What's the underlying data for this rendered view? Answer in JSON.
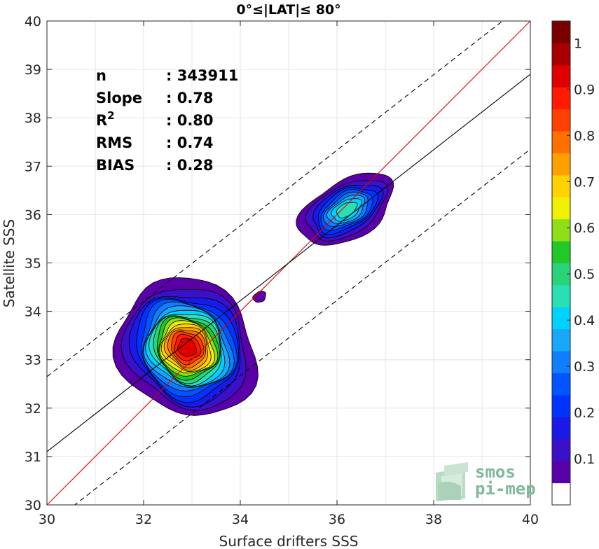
{
  "chart_data": {
    "type": "heatmap",
    "title": "0°≤|LAT|≤ 80°",
    "xlabel": "Surface drifters SSS",
    "ylabel": "Satellite SSS",
    "xlim": [
      30,
      40
    ],
    "ylim": [
      30,
      40
    ],
    "xticks": [
      "30",
      "32",
      "34",
      "36",
      "38",
      "40"
    ],
    "yticks": [
      "30",
      "31",
      "32",
      "33",
      "34",
      "35",
      "36",
      "37",
      "38",
      "39",
      "40"
    ],
    "grid": true,
    "stats": [
      {
        "label": "n",
        "value": ": 343911"
      },
      {
        "label": "Slope",
        "value": ": 0.78"
      },
      {
        "label": "R",
        "sup": "2",
        "value": ": 0.80"
      },
      {
        "label": "RMS",
        "value": ": 0.74"
      },
      {
        "label": "BIAS",
        "value": ": 0.28"
      }
    ],
    "lines": [
      {
        "name": "one-to-one",
        "slope": 1.0,
        "intercept": 0.0,
        "color": "#e00000",
        "style": "solid"
      },
      {
        "name": "regression",
        "slope": 0.78,
        "intercept": 7.7,
        "color": "#000000",
        "style": "solid"
      },
      {
        "name": "upper",
        "slope": 0.78,
        "intercept": 9.25,
        "color": "#000000",
        "style": "dashed"
      },
      {
        "name": "lower",
        "slope": 0.78,
        "intercept": 6.15,
        "color": "#000000",
        "style": "dashed"
      }
    ],
    "density_clusters": [
      {
        "x": 32.9,
        "y": 33.25,
        "sx": 0.55,
        "sy": 0.62,
        "theta_deg": 48,
        "peak": 1.0
      },
      {
        "x": 36.2,
        "y": 36.1,
        "sx": 0.5,
        "sy": 0.28,
        "theta_deg": 30,
        "peak": 0.5
      },
      {
        "x": 34.4,
        "y": 34.3,
        "sx": 0.12,
        "sy": 0.09,
        "theta_deg": 30,
        "peak": 0.1
      }
    ],
    "colorbar": {
      "ticks": [
        "1",
        "0.9",
        "0.8",
        "0.7",
        "0.6",
        "0.5",
        "0.4",
        "0.3",
        "0.2",
        "0.1"
      ],
      "tick_values": [
        1,
        0.9,
        0.8,
        0.7,
        0.6,
        0.5,
        0.4,
        0.3,
        0.2,
        0.1
      ],
      "levels": [
        0.05,
        0.1,
        0.15,
        0.2,
        0.25,
        0.3,
        0.35,
        0.4,
        0.45,
        0.5,
        0.55,
        0.6,
        0.65,
        0.7,
        0.75,
        0.8,
        0.85,
        0.9,
        0.95,
        1.0
      ],
      "colors": [
        "#ffffff",
        "#5a00a8",
        "#3a10c8",
        "#1a1ae8",
        "#0033ff",
        "#0055ff",
        "#0f7fff",
        "#17a8f8",
        "#00d2ff",
        "#28e0b4",
        "#2ad27a",
        "#22c828",
        "#8fde18",
        "#f0f000",
        "#ffd200",
        "#ffa000",
        "#ff7000",
        "#ff4000",
        "#ff1a00",
        "#e00000",
        "#a80000",
        "#7a0000"
      ]
    }
  },
  "logo": {
    "line1": "smos",
    "line2": "pi-mep"
  }
}
